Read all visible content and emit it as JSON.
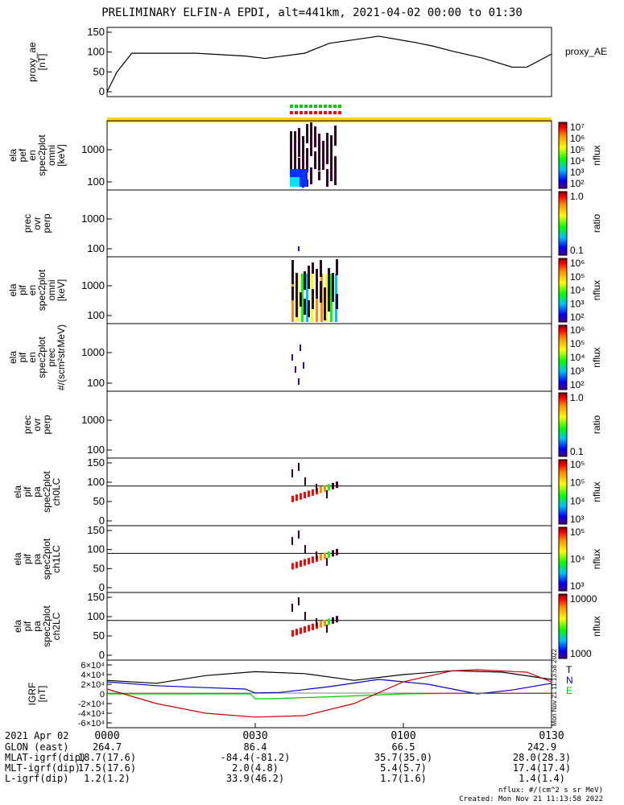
{
  "title": "PRELIMINARY ELFIN-A EPDI, alt=441km, 2021-04-02 00:00 to 01:30",
  "chart_data": [
    {
      "id": "proxy_ae",
      "type": "line",
      "ylabel": "proxy_ae [nT]",
      "legend": "proxy_AE",
      "ylim": [
        0,
        150
      ],
      "yticks": [
        "0",
        "50",
        "100",
        "150"
      ],
      "series": [
        {
          "name": "proxy_AE",
          "x": [
            0,
            2,
            5,
            9,
            18,
            28,
            32,
            40,
            45,
            55,
            62,
            66,
            70,
            76,
            82,
            85,
            90
          ],
          "y": [
            0,
            50,
            97,
            97,
            97,
            90,
            84,
            97,
            122,
            140,
            125,
            115,
            102,
            85,
            62,
            62,
            95
          ]
        }
      ]
    },
    {
      "id": "elf_pef_en_spec2plot_omni",
      "type": "heatmap",
      "ylabel": "ela pef en spec2plot omni [keV]",
      "yticks": [
        "100",
        "1000"
      ],
      "colorbar": {
        "label": "nflux",
        "ticks": [
          "10²",
          "10³",
          "10⁴",
          "10⁵",
          "10⁶",
          "10⁷"
        ]
      }
    },
    {
      "id": "elf_pef_prec_ovr_perp",
      "type": "heatmap",
      "ylabel": "prec ovr perp",
      "yticks": [
        "100",
        "1000"
      ],
      "colorbar": {
        "label": "ratio",
        "ticks": [
          "0.1",
          "1.0"
        ]
      }
    },
    {
      "id": "elf_pif_en_spec2plot_omni",
      "type": "heatmap",
      "ylabel": "ela pif en spec2plot omni [keV]",
      "yticks": [
        "100",
        "1000"
      ],
      "colorbar": {
        "label": "nflux",
        "ticks": [
          "10²",
          "10³",
          "10⁴",
          "10⁵",
          "10⁶"
        ]
      }
    },
    {
      "id": "elf_pif_en_spec2plot_prec",
      "type": "heatmap",
      "ylabel": "ela pif en spec2plot prec #/(scm²strMeV)",
      "yticks": [
        "100",
        "1000"
      ],
      "colorbar": {
        "label": "nflux",
        "ticks": [
          "10²",
          "10³",
          "10⁴",
          "10⁵",
          "10⁶"
        ]
      }
    },
    {
      "id": "elf_pif_prec_ovr_perp",
      "type": "heatmap",
      "ylabel": "prec ovr perp",
      "yticks": [
        "100",
        "1000"
      ],
      "colorbar": {
        "label": "ratio",
        "ticks": [
          "0.1",
          "1.0"
        ]
      }
    },
    {
      "id": "elf_pif_pa_spec2plot_ch0LC",
      "type": "heatmap",
      "ylabel": "ela pif pa spec2plot ch0LC",
      "yticks": [
        "0",
        "50",
        "100",
        "150"
      ],
      "colorbar": {
        "label": "nflux",
        "ticks": [
          "10³",
          "10⁴",
          "10⁵",
          "10⁵"
        ]
      }
    },
    {
      "id": "elf_pif_pa_spec2plot_ch1LC",
      "type": "heatmap",
      "ylabel": "ela pif pa spec2plot ch1LC",
      "yticks": [
        "0",
        "50",
        "100",
        "150"
      ],
      "colorbar": {
        "label": "nflux",
        "ticks": [
          "10³",
          "10⁴",
          "10⁵"
        ]
      }
    },
    {
      "id": "elf_pif_pa_spec2plot_ch2LC",
      "type": "heatmap",
      "ylabel": "ela pif pa spec2plot ch2LC",
      "yticks": [
        "0",
        "50",
        "100",
        "150"
      ],
      "colorbar": {
        "label": "nflux",
        "ticks": [
          "1000",
          "10000"
        ]
      }
    },
    {
      "id": "igrf",
      "type": "line",
      "ylabel": "IGRF [nT]",
      "ylim": [
        -60000,
        60000
      ],
      "yticks": [
        "-6×10⁴",
        "-4×10⁴",
        "-2×10⁴",
        "0",
        "2×10⁴",
        "4×10⁴",
        "6×10⁴"
      ],
      "series": [
        {
          "name": "T",
          "color": "#000000",
          "x": [
            0,
            10,
            20,
            30,
            40,
            50,
            60,
            70,
            80,
            90
          ],
          "y": [
            28000,
            22000,
            38000,
            46000,
            42000,
            28000,
            40000,
            48000,
            45000,
            30000
          ]
        },
        {
          "name": "N",
          "color": "#0000cc",
          "x": [
            0,
            10,
            20,
            28,
            30,
            35,
            45,
            55,
            65,
            75,
            82,
            90
          ],
          "y": [
            25000,
            17000,
            13000,
            10000,
            2000,
            3000,
            15000,
            30000,
            20000,
            0,
            8000,
            22000
          ]
        },
        {
          "name": "E",
          "color": "#00cc00",
          "x": [
            0,
            29,
            30,
            33,
            45,
            60,
            70,
            90
          ],
          "y": [
            0,
            0,
            -10000,
            -10000,
            -6000,
            0,
            1000,
            1000
          ]
        },
        {
          "name": "N",
          "color": "#cc0000",
          "x": [
            0,
            10,
            20,
            30,
            40,
            50,
            60,
            70,
            75,
            85,
            90
          ],
          "y": [
            10000,
            -20000,
            -40000,
            -48000,
            -45000,
            -20000,
            25000,
            48000,
            50000,
            45000,
            25000
          ]
        }
      ]
    }
  ],
  "time_ticks": [
    "0000",
    "0030",
    "0100",
    "0130"
  ],
  "ephemeris": {
    "labels": [
      "2021 Apr 02",
      "GLON (east)",
      "MLAT-igrf(dip)",
      "MLT-igrf(dip)",
      "L-igrf(dip)"
    ],
    "columns": [
      [
        "264.7",
        "18.7(17.6)",
        "17.5(17.6)",
        "1.2(1.2)"
      ],
      [
        "86.4",
        "-84.4(-81.2)",
        "2.0(4.8)",
        "33.9(46.2)"
      ],
      [
        "66.5",
        "35.7(35.0)",
        "5.4(5.7)",
        "1.7(1.6)"
      ],
      [
        "242.9",
        "28.0(28.3)",
        "17.4(17.4)",
        "1.4(1.4)"
      ]
    ]
  },
  "footer": {
    "units": "nflux: #/(cm^2 s sr MeV)",
    "created": "Created: Mon Nov 21 11:13:58 2022",
    "sidestamp": "Mon Nov 21 11:13:58 2022"
  }
}
